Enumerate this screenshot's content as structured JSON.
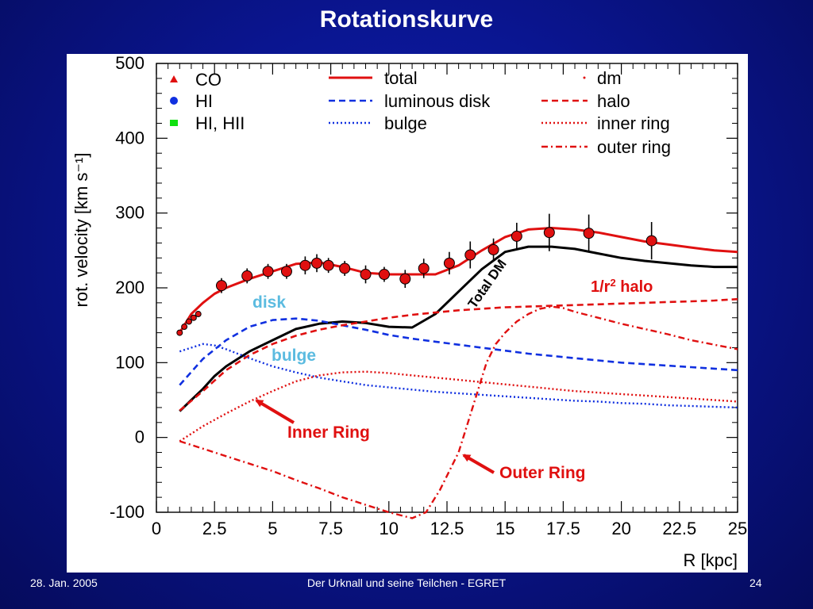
{
  "slide": {
    "title": "Rotationskurve",
    "footer_left": "28. Jan. 2005",
    "footer_center": "Der Urknall und seine Teilchen - EGRET",
    "footer_right": "24"
  },
  "colors": {
    "background": "#0a1590",
    "red": "#e01010",
    "blue": "#1030e0",
    "black": "#000000",
    "annotation_blue": "#5bbbe0"
  },
  "chart_data": {
    "type": "line",
    "xlabel": "R [kpc]",
    "ylabel": "rot. velocity [km s⁻¹]",
    "xlim": [
      0,
      25
    ],
    "ylim": [
      -100,
      500
    ],
    "x_ticks": [
      "0",
      "2.5",
      "5",
      "7.5",
      "10",
      "12.5",
      "15",
      "17.5",
      "20",
      "22.5",
      "25"
    ],
    "y_ticks": [
      "-100",
      "0",
      "100",
      "200",
      "300",
      "400",
      "500"
    ],
    "legend_position": "top",
    "legend": {
      "markers": [
        {
          "label": "CO",
          "symbol": "triangle",
          "color": "#e01010"
        },
        {
          "label": "HI",
          "symbol": "circle",
          "color": "#1030e0"
        },
        {
          "label": "HI, HII",
          "symbol": "square",
          "color": "#10e010"
        }
      ],
      "lines": [
        {
          "label": "total",
          "style": "solid",
          "color": "#e01010"
        },
        {
          "label": "luminous disk",
          "style": "dashed",
          "color": "#1030e0"
        },
        {
          "label": "bulge",
          "style": "dotted",
          "color": "#1030e0"
        },
        {
          "label": "dm",
          "style": "dot",
          "color": "#e01010"
        },
        {
          "label": "halo",
          "style": "dashed",
          "color": "#e01010"
        },
        {
          "label": "inner ring",
          "style": "dotted",
          "color": "#e01010"
        },
        {
          "label": "outer ring",
          "style": "dashdot",
          "color": "#e01010"
        }
      ]
    },
    "data_points": {
      "x": [
        1.0,
        1.2,
        1.4,
        1.6,
        1.8,
        2.8,
        3.9,
        4.8,
        5.6,
        6.4,
        6.9,
        7.4,
        8.1,
        9.0,
        9.8,
        10.7,
        11.5,
        12.6,
        13.5,
        14.5,
        15.5,
        16.9,
        18.6,
        21.3
      ],
      "y": [
        140,
        148,
        155,
        160,
        165,
        203,
        216,
        222,
        222,
        230,
        233,
        230,
        226,
        218,
        218,
        212,
        226,
        233,
        244,
        251,
        269,
        274,
        273,
        263
      ],
      "err": [
        0,
        0,
        0,
        0,
        0,
        10,
        10,
        10,
        10,
        12,
        12,
        10,
        10,
        12,
        10,
        12,
        13,
        15,
        18,
        15,
        18,
        25,
        25,
        25
      ]
    },
    "series": [
      {
        "name": "total",
        "style": "solid",
        "color": "#e01010",
        "x": [
          1.0,
          1.5,
          2.0,
          2.5,
          3,
          4,
          5,
          6,
          7,
          8,
          9,
          10,
          11,
          12,
          13,
          14,
          15,
          16,
          17,
          18,
          19,
          20,
          21,
          22,
          23,
          24,
          25
        ],
        "y": [
          140,
          165,
          180,
          192,
          200,
          212,
          222,
          232,
          234,
          228,
          220,
          218,
          218,
          218,
          230,
          250,
          268,
          278,
          280,
          278,
          274,
          268,
          262,
          258,
          254,
          250,
          248
        ]
      },
      {
        "name": "Total DM",
        "style": "solid",
        "color": "#000000",
        "x": [
          1.0,
          1.5,
          2.0,
          2.5,
          3,
          4,
          5,
          6,
          7,
          8,
          9,
          10,
          11,
          12,
          13,
          14,
          15,
          16,
          17,
          18,
          19,
          20,
          21,
          22,
          23,
          24,
          25
        ],
        "y": [
          35,
          50,
          65,
          82,
          95,
          115,
          130,
          145,
          152,
          155,
          153,
          148,
          147,
          165,
          195,
          225,
          248,
          255,
          255,
          252,
          246,
          240,
          236,
          233,
          230,
          228,
          228
        ]
      },
      {
        "name": "luminous disk",
        "style": "dashed",
        "color": "#1030e0",
        "x": [
          1.0,
          2,
          3,
          4,
          5,
          6,
          7,
          8,
          9,
          10,
          11,
          12,
          13,
          14,
          15,
          16,
          17,
          18,
          19,
          20,
          21,
          22,
          23,
          24,
          25
        ],
        "y": [
          70,
          105,
          130,
          148,
          157,
          159,
          156,
          150,
          144,
          137,
          132,
          128,
          124,
          120,
          116,
          112,
          109,
          106,
          103,
          100,
          98,
          96,
          94,
          92,
          90
        ]
      },
      {
        "name": "bulge",
        "style": "dotted",
        "color": "#1030e0",
        "x": [
          1.0,
          1.5,
          2.0,
          2.5,
          3,
          4,
          5,
          6,
          7,
          8,
          9,
          10,
          11,
          12,
          13,
          14,
          15,
          16,
          17,
          18,
          19,
          20,
          21,
          22,
          23,
          24,
          25
        ],
        "y": [
          115,
          120,
          125,
          123,
          118,
          106,
          95,
          87,
          80,
          75,
          70,
          67,
          64,
          61,
          59,
          57,
          55,
          53,
          51,
          49,
          48,
          46,
          45,
          43,
          42,
          41,
          40
        ]
      },
      {
        "name": "halo",
        "style": "dashed",
        "color": "#e01010",
        "x": [
          1.0,
          2,
          3,
          4,
          5,
          6,
          7,
          8,
          9,
          10,
          11,
          12,
          13,
          14,
          15,
          16,
          17,
          18,
          19,
          20,
          21,
          22,
          23,
          24,
          25
        ],
        "y": [
          36,
          62,
          90,
          110,
          125,
          136,
          144,
          150,
          155,
          160,
          164,
          167,
          170,
          172,
          174,
          175,
          176,
          177,
          178,
          179,
          180,
          181,
          182,
          183,
          185
        ]
      },
      {
        "name": "inner ring",
        "style": "dotted",
        "color": "#e01010",
        "x": [
          1.0,
          2,
          3,
          4,
          5,
          6,
          7,
          8,
          9,
          10,
          11,
          12,
          13,
          14,
          15,
          16,
          17,
          18,
          19,
          20,
          21,
          22,
          23,
          24,
          25
        ],
        "y": [
          -5,
          15,
          32,
          48,
          62,
          75,
          83,
          87,
          88,
          86,
          83,
          80,
          77,
          74,
          71,
          68,
          65,
          62,
          60,
          58,
          56,
          54,
          52,
          50,
          48
        ]
      },
      {
        "name": "outer ring",
        "style": "dashdot",
        "color": "#e01010",
        "x": [
          1.0,
          2,
          3,
          4,
          5,
          6,
          7,
          8,
          9,
          10,
          11,
          11.6,
          12.2,
          12.6,
          13.0,
          13.4,
          13.8,
          14.2,
          14.6,
          15.0,
          15.5,
          16,
          16.5,
          17,
          17.5,
          18,
          19,
          20,
          21,
          22,
          23,
          24,
          25
        ],
        "y": [
          -5,
          -15,
          -25,
          -35,
          -45,
          -57,
          -68,
          -80,
          -90,
          -100,
          -108,
          -100,
          -70,
          -45,
          -20,
          20,
          60,
          100,
          125,
          140,
          155,
          165,
          172,
          175,
          173,
          168,
          160,
          152,
          145,
          138,
          130,
          124,
          118
        ]
      }
    ],
    "annotations": [
      {
        "text": "Total DM",
        "color": "#000000"
      },
      {
        "text": "1/r",
        "sup": "2",
        "suffix": " halo",
        "color": "#e01010"
      },
      {
        "text": "disk",
        "color": "#5bbbe0"
      },
      {
        "text": "bulge",
        "color": "#5bbbe0"
      },
      {
        "text": "Inner Ring",
        "color": "#e01010"
      },
      {
        "text": "Outer Ring",
        "color": "#e01010"
      }
    ]
  }
}
